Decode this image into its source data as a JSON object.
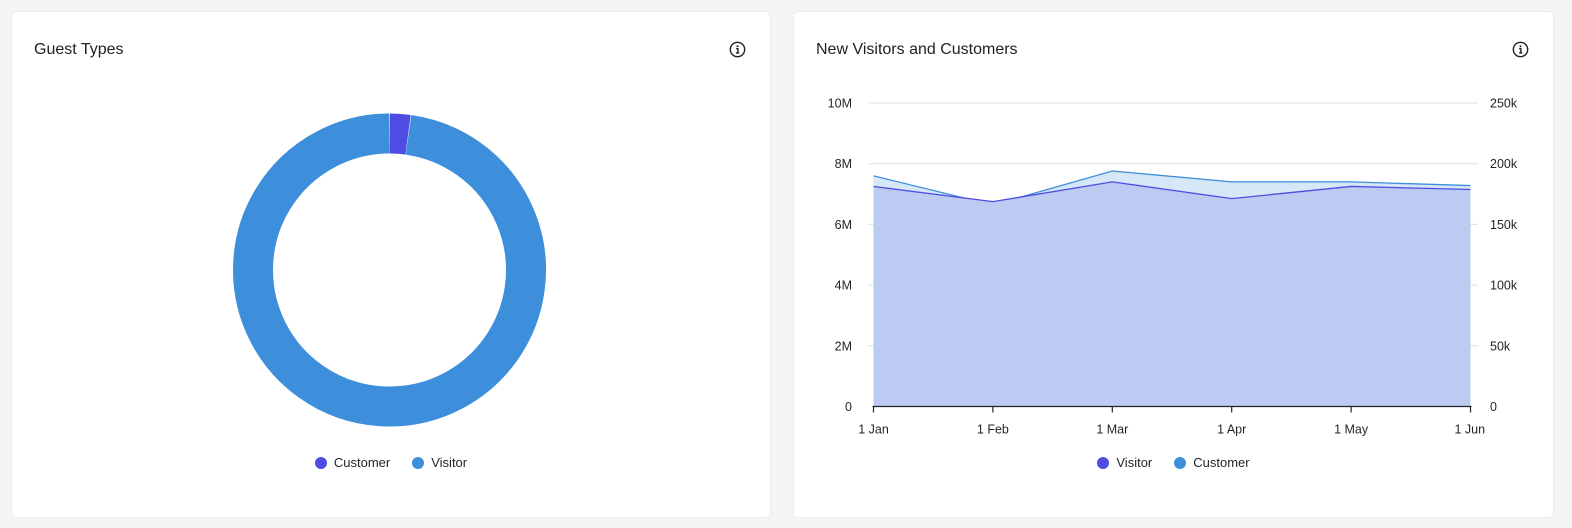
{
  "cards": {
    "guest_types": {
      "title": "Guest Types",
      "info_icon": "info-circle-icon",
      "legend": [
        {
          "label": "Customer",
          "color": "#4f4ce3"
        },
        {
          "label": "Visitor",
          "color": "#3d8fdb"
        }
      ]
    },
    "new_visitors_customers": {
      "title": "New Visitors and Customers",
      "info_icon": "info-circle-icon",
      "legend": [
        {
          "label": "Visitor",
          "color": "#4f4ce3"
        },
        {
          "label": "Customer",
          "color": "#3d8fdb"
        }
      ]
    }
  },
  "chart_data": [
    {
      "type": "pie",
      "variant": "donut",
      "categories": [
        "Customer",
        "Visitor"
      ],
      "values": [
        2.2,
        97.8
      ],
      "colors": [
        "#4f4ce3",
        "#3d8fdb"
      ],
      "legend_position": "bottom"
    },
    {
      "type": "area",
      "x": [
        "1 Jan",
        "1 Feb",
        "1 Mar",
        "1 Apr",
        "1 May",
        "1 Jun"
      ],
      "series": [
        {
          "name": "Visitor",
          "axis": "left",
          "color": "#4f4ce3",
          "fill": "#bccbf2",
          "values": [
            7250000,
            6750000,
            7400000,
            6850000,
            7250000,
            7150000
          ]
        },
        {
          "name": "Customer",
          "axis": "right",
          "color": "#3d8fdb",
          "fill": "#d6e7f8",
          "values": [
            190000,
            166000,
            194000,
            185000,
            185000,
            182000
          ]
        }
      ],
      "y_left": {
        "ticks": [
          "0",
          "2M",
          "4M",
          "6M",
          "8M",
          "10M"
        ],
        "ylim": [
          0,
          10000000
        ]
      },
      "y_right": {
        "ticks": [
          "0",
          "50k",
          "100k",
          "150k",
          "200k",
          "250k"
        ],
        "ylim": [
          0,
          250000
        ]
      },
      "grid": true,
      "legend_position": "bottom"
    }
  ]
}
